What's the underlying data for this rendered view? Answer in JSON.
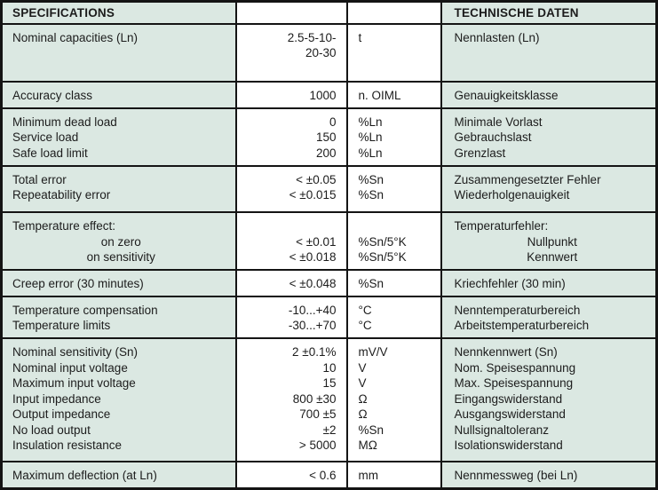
{
  "colors": {
    "cell_green": "#dbe8e2",
    "border": "#141414",
    "text": "#1c1c1c",
    "white": "#ffffff"
  },
  "table": {
    "header": {
      "left": "SPECIFICATIONS",
      "value_col": "",
      "unit_col": "",
      "right": "TECHNISCHE DATEN"
    },
    "sections": [
      {
        "lines": [
          {
            "label": "Nominal capacities (Ln)",
            "value": "2.5-5-10-",
            "unit": "t",
            "de": "Nennlasten (Ln)"
          },
          {
            "label": "",
            "value": "20-30",
            "unit": "",
            "de": ""
          }
        ]
      },
      {
        "lines": [
          {
            "label": "Accuracy class",
            "value": "1000",
            "unit": "n. OIML",
            "de": "Genauigkeitsklasse"
          }
        ]
      },
      {
        "lines": [
          {
            "label": "Minimum dead load",
            "value": "0",
            "unit": "%Ln",
            "de": "Minimale Vorlast"
          },
          {
            "label": "Service load",
            "value": "150",
            "unit": "%Ln",
            "de": "Gebrauchslast"
          },
          {
            "label": "Safe load limit",
            "value": "200",
            "unit": "%Ln",
            "de": "Grenzlast"
          }
        ]
      },
      {
        "lines": [
          {
            "label": "Total error",
            "value": "< ±0.05",
            "unit": "%Sn",
            "de": "Zusammengesetzter Fehler"
          },
          {
            "label": "Repeatability error",
            "value": "< ±0.015",
            "unit": "%Sn",
            "de": "Wiederholgenauigkeit"
          }
        ]
      },
      {
        "lines": [
          {
            "label": "Temperature effect:",
            "value": "",
            "unit": "",
            "de": "Temperaturfehler:"
          },
          {
            "label": "on zero",
            "value": "< ±0.01",
            "unit": "%Sn/5°K",
            "de": "Nullpunkt",
            "indent": true
          },
          {
            "label": "on sensitivity",
            "value": "< ±0.018",
            "unit": "%Sn/5°K",
            "de": "Kennwert",
            "indent": true
          }
        ]
      },
      {
        "lines": [
          {
            "label": "Creep error (30 minutes)",
            "value": "< ±0.048",
            "unit": "%Sn",
            "de": "Kriechfehler (30 min)"
          }
        ]
      },
      {
        "lines": [
          {
            "label": "Temperature compensation",
            "value": "-10...+40",
            "unit": "°C",
            "de": "Nenntemperaturbereich"
          },
          {
            "label": "Temperature limits",
            "value": "-30...+70",
            "unit": "°C",
            "de": "Arbeitstemperaturbereich"
          }
        ]
      },
      {
        "lines": [
          {
            "label": "Nominal sensitivity (Sn)",
            "value": "2 ±0.1%",
            "unit": "mV/V",
            "de": "Nennkennwert (Sn)"
          },
          {
            "label": "Nominal input voltage",
            "value": "10",
            "unit": "V",
            "de": "Nom. Speisespannung"
          },
          {
            "label": "Maximum input voltage",
            "value": "15",
            "unit": "V",
            "de": "Max. Speisespannung"
          },
          {
            "label": "Input impedance",
            "value": "800 ±30",
            "unit": "Ω",
            "de": "Eingangswiderstand"
          },
          {
            "label": "Output impedance",
            "value": "700 ±5",
            "unit": "Ω",
            "de": "Ausgangswiderstand"
          },
          {
            "label": "No load output",
            "value": "±2",
            "unit": "%Sn",
            "de": "Nullsignaltoleranz"
          },
          {
            "label": "Insulation resistance",
            "value": "> 5000",
            "unit": "MΩ",
            "de": "Isolationswiderstand"
          }
        ]
      },
      {
        "lines": [
          {
            "label": "Maximum deflection (at Ln)",
            "value": "< 0.6",
            "unit": "mm",
            "de": "Nennmessweg (bei Ln)"
          }
        ]
      }
    ]
  }
}
